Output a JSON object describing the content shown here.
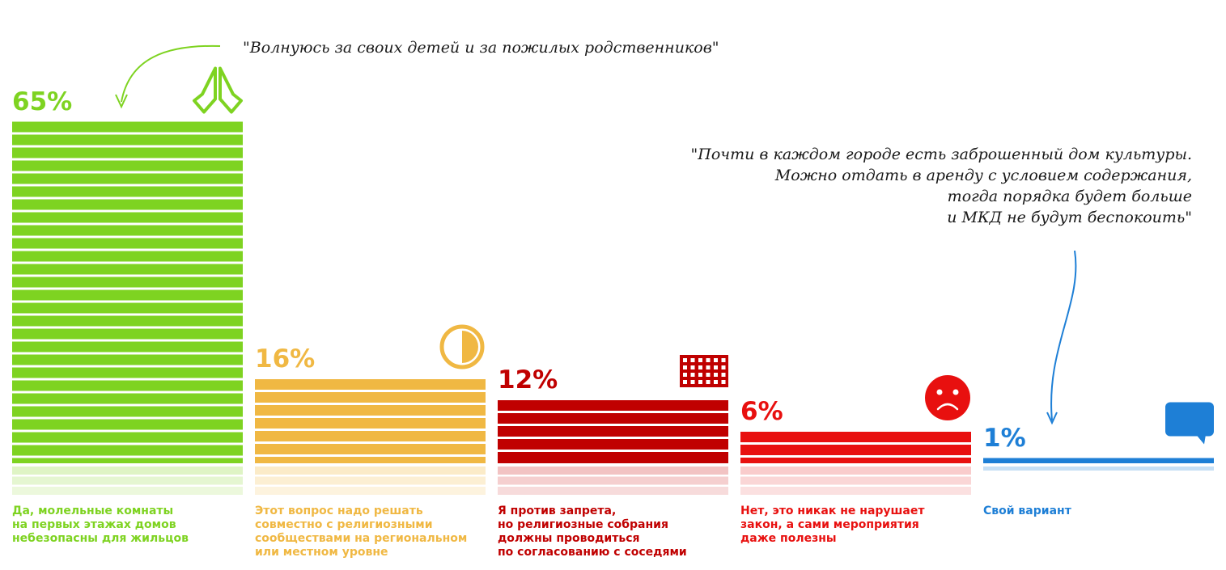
{
  "chart_data": {
    "type": "bar",
    "categories": [
      "Да, молельные комнаты на первых этажах домов небезопасны для жильцов",
      "Этот вопрос надо решать совместно с религиозными сообществами на региональном или местном уровне",
      "Я против запрета, но религиозные собрания должны проводиться по согласованию с соседями",
      "Нет, это никак не нарушает закон, а сами мероприятия даже полезны",
      "Свой вариант"
    ],
    "values": [
      65,
      16,
      12,
      6,
      1
    ],
    "value_labels": [
      "65%",
      "16%",
      "12%",
      "6%",
      "1%"
    ],
    "ylim": [
      0,
      100
    ],
    "grid": false,
    "legend": "none"
  },
  "bars": [
    {
      "value_label": "65%",
      "color": "#7ed321",
      "light_color": "#dff4c5",
      "icon": "praying-hands-icon",
      "description_lines": [
        "Да, молельные комнаты",
        "на первых этажах домов",
        "небезопасны для жильцов"
      ]
    },
    {
      "value_label": "16%",
      "color": "#f0b843",
      "light_color": "#fbebc8",
      "icon": "half-circle-icon",
      "description_lines": [
        "Этот вопрос надо решать",
        "совместно с религиозными",
        "сообществами на региональном",
        "или местном уровне"
      ]
    },
    {
      "value_label": "12%",
      "color": "#c00000",
      "light_color": "#f2c3c3",
      "icon": "building-icon",
      "description_lines": [
        "Я против запрета,",
        "но религиозные собрания",
        "должны проводиться",
        "по согласованию с соседями"
      ]
    },
    {
      "value_label": "6%",
      "color": "#e8100f",
      "light_color": "#f9cccc",
      "icon": "sad-face-icon",
      "description_lines": [
        "Нет, это никак не нарушает",
        "закон, а сами мероприятия",
        "даже полезны"
      ]
    },
    {
      "value_label": "1%",
      "color": "#1e7fd6",
      "light_color": "#c6dff5",
      "icon": "speech-bubble-icon",
      "description_lines": [
        "Свой вариант"
      ]
    }
  ],
  "quotes": [
    {
      "lines": [
        "\"Волнуюсь за своих детей и за пожилых родственников\""
      ],
      "arrow_color": "#7ed321"
    },
    {
      "lines": [
        "\"Почти в каждом городе есть заброшенный дом культуры.",
        "Можно отдать в аренду с условием содержания,",
        "тогда порядка будет больше",
        "и МКД не будут беспокоить\""
      ],
      "arrow_color": "#1e7fd6"
    }
  ]
}
